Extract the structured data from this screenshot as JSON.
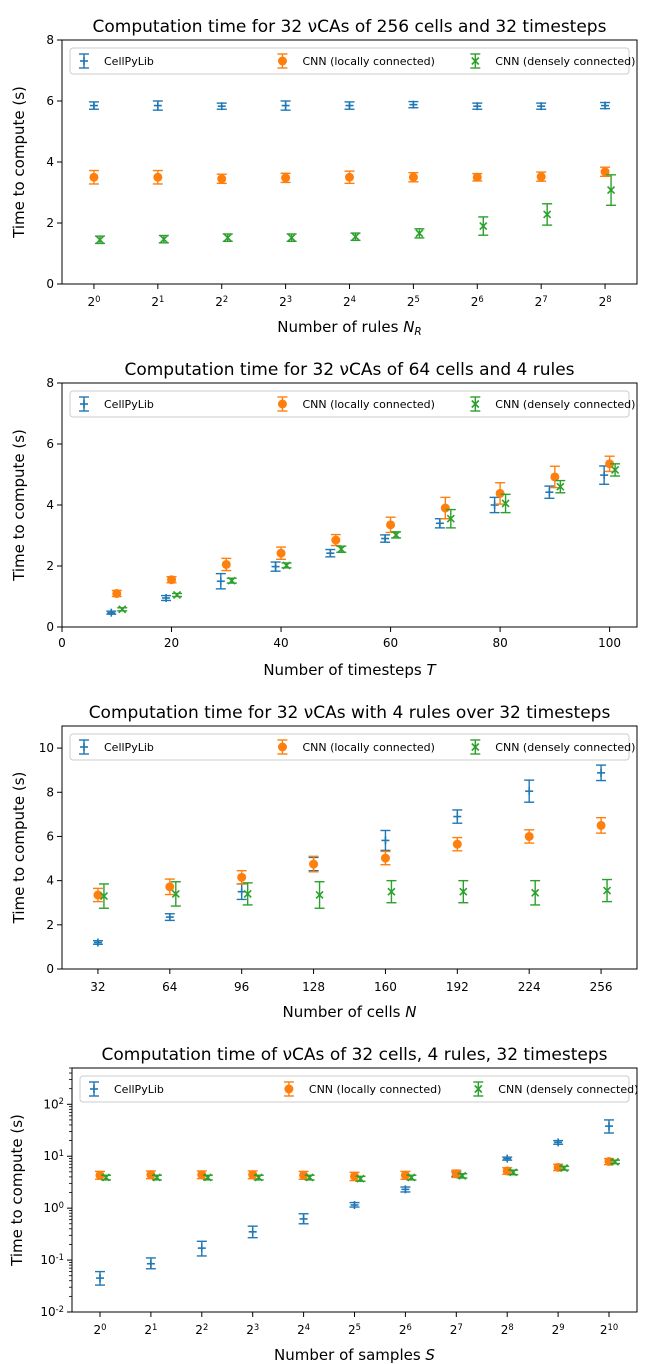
{
  "colors": {
    "cellpylib": "#1f77b4",
    "cnn_local": "#ff7f0e",
    "cnn_dense": "#2ca02c"
  },
  "chart_data": [
    {
      "type": "scatter",
      "title": "Computation time for 32 νCAs of 256 cells and 32 timesteps",
      "xlabel": "Number of rules N_R",
      "ylabel": "Time to compute (s)",
      "xscale": "categorical-log2",
      "x": [
        1,
        2,
        4,
        8,
        16,
        32,
        64,
        128,
        256
      ],
      "x_tick_labels": [
        "2^0",
        "2^1",
        "2^2",
        "2^3",
        "2^4",
        "2^5",
        "2^6",
        "2^7",
        "2^8"
      ],
      "ylim": [
        0,
        8
      ],
      "y_ticks": [
        0,
        2,
        4,
        6,
        8
      ],
      "legend": "top, 3 columns",
      "series": [
        {
          "name": "CellPyLib",
          "marker": "plus",
          "values": [
            5.85,
            5.85,
            5.83,
            5.85,
            5.85,
            5.88,
            5.83,
            5.83,
            5.85
          ],
          "err": [
            0.12,
            0.15,
            0.1,
            0.15,
            0.12,
            0.1,
            0.1,
            0.1,
            0.1
          ]
        },
        {
          "name": "CNN (locally connected)",
          "marker": "circle",
          "values": [
            3.5,
            3.5,
            3.45,
            3.48,
            3.5,
            3.5,
            3.5,
            3.52,
            3.68
          ],
          "err": [
            0.22,
            0.22,
            0.15,
            0.15,
            0.2,
            0.15,
            0.12,
            0.15,
            0.15
          ]
        },
        {
          "name": "CNN (densely connected)",
          "marker": "x",
          "values": [
            1.45,
            1.47,
            1.52,
            1.52,
            1.55,
            1.66,
            1.9,
            2.28,
            3.08
          ],
          "err": [
            0.12,
            0.12,
            0.12,
            0.12,
            0.12,
            0.15,
            0.3,
            0.35,
            0.5
          ]
        }
      ]
    },
    {
      "type": "scatter",
      "title": "Computation time for 32 νCAs of 64 cells and 4 rules",
      "xlabel": "Number of timesteps T",
      "ylabel": "Time to compute (s)",
      "xlim": [
        0,
        105
      ],
      "x_ticks": [
        0,
        20,
        40,
        60,
        80,
        100
      ],
      "ylim": [
        0,
        8
      ],
      "y_ticks": [
        0,
        2,
        4,
        6,
        8
      ],
      "legend": "top, 3 columns",
      "series": [
        {
          "name": "CellPyLib",
          "marker": "plus",
          "x": [
            9,
            19,
            29,
            39,
            49,
            59,
            69,
            79,
            89,
            99
          ],
          "values": [
            0.47,
            0.95,
            1.5,
            1.98,
            2.42,
            2.9,
            3.4,
            4.0,
            4.42,
            4.98
          ],
          "err": [
            0.05,
            0.08,
            0.25,
            0.15,
            0.12,
            0.12,
            0.15,
            0.25,
            0.2,
            0.3
          ]
        },
        {
          "name": "CNN (locally connected)",
          "marker": "circle",
          "x": [
            10,
            20,
            30,
            40,
            50,
            60,
            70,
            80,
            90,
            100
          ],
          "values": [
            1.1,
            1.55,
            2.05,
            2.42,
            2.85,
            3.35,
            3.9,
            4.38,
            4.92,
            5.35
          ],
          "err": [
            0.1,
            0.1,
            0.2,
            0.2,
            0.18,
            0.25,
            0.35,
            0.35,
            0.35,
            0.25
          ]
        },
        {
          "name": "CNN (densely connected)",
          "marker": "x",
          "x": [
            11,
            21,
            31,
            41,
            51,
            61,
            71,
            81,
            91,
            101
          ],
          "values": [
            0.58,
            1.05,
            1.52,
            2.02,
            2.55,
            3.02,
            3.55,
            4.05,
            4.6,
            5.15
          ],
          "err": [
            0.05,
            0.05,
            0.08,
            0.08,
            0.1,
            0.1,
            0.3,
            0.3,
            0.2,
            0.2
          ]
        }
      ]
    },
    {
      "type": "scatter",
      "title": "Computation time for 32 νCAs with 4 rules over 32 timesteps",
      "xlabel": "Number of cells N",
      "ylabel": "Time to compute (s)",
      "x": [
        32,
        64,
        96,
        128,
        160,
        192,
        224,
        256
      ],
      "x_tick_labels": [
        "32",
        "64",
        "96",
        "128",
        "160",
        "192",
        "224",
        "256"
      ],
      "ylim": [
        0,
        11
      ],
      "y_ticks": [
        0,
        2,
        4,
        6,
        8,
        10
      ],
      "legend": "top, 3 columns",
      "series": [
        {
          "name": "CellPyLib",
          "marker": "plus",
          "values": [
            1.2,
            2.35,
            3.5,
            4.75,
            5.82,
            6.9,
            8.05,
            8.88
          ],
          "err": [
            0.08,
            0.15,
            0.35,
            0.3,
            0.45,
            0.3,
            0.5,
            0.35
          ]
        },
        {
          "name": "CNN (locally connected)",
          "marker": "circle",
          "values": [
            3.35,
            3.72,
            4.15,
            4.75,
            5.02,
            5.65,
            6.0,
            6.5
          ],
          "err": [
            0.3,
            0.35,
            0.3,
            0.35,
            0.3,
            0.3,
            0.3,
            0.35
          ]
        },
        {
          "name": "CNN (densely connected)",
          "marker": "x",
          "values": [
            3.3,
            3.4,
            3.4,
            3.35,
            3.5,
            3.5,
            3.45,
            3.55
          ],
          "err": [
            0.55,
            0.55,
            0.5,
            0.6,
            0.5,
            0.5,
            0.55,
            0.5
          ]
        }
      ]
    },
    {
      "type": "scatter",
      "title": "Computation time of νCAs of 32 cells, 4 rules, 32 timesteps",
      "xlabel": "Number of samples S",
      "ylabel": "Time to compute (s)",
      "yscale": "log",
      "x": [
        1,
        2,
        4,
        8,
        16,
        32,
        64,
        128,
        256,
        512,
        1024
      ],
      "x_tick_labels": [
        "2^0",
        "2^1",
        "2^2",
        "2^3",
        "2^4",
        "2^5",
        "2^6",
        "2^7",
        "2^8",
        "2^9",
        "2^10"
      ],
      "ylim": [
        0.01,
        500
      ],
      "y_tick_labels": [
        "10^-2",
        "10^-1",
        "10^0",
        "10^1",
        "10^2"
      ],
      "legend": "top, 3 columns",
      "series": [
        {
          "name": "CellPyLib",
          "marker": "plus",
          "values": [
            0.045,
            0.085,
            0.17,
            0.35,
            0.62,
            1.15,
            2.3,
            4.5,
            9.0,
            18.5,
            38
          ],
          "lo": [
            0.033,
            0.068,
            0.12,
            0.27,
            0.5,
            1.05,
            2.05,
            4.1,
            8.4,
            17,
            28
          ],
          "hi": [
            0.06,
            0.11,
            0.23,
            0.45,
            0.78,
            1.28,
            2.55,
            5.0,
            9.6,
            20,
            50
          ]
        },
        {
          "name": "CNN (locally connected)",
          "marker": "circle",
          "values": [
            4.3,
            4.4,
            4.4,
            4.4,
            4.3,
            4.1,
            4.3,
            4.6,
            5.2,
            6.1,
            7.9
          ],
          "lo": [
            3.6,
            3.7,
            3.7,
            3.7,
            3.6,
            3.4,
            3.6,
            3.9,
            4.5,
            5.3,
            6.9
          ],
          "hi": [
            5.1,
            5.2,
            5.2,
            5.2,
            5.1,
            4.9,
            5.1,
            5.4,
            6.0,
            7.0,
            9.0
          ]
        },
        {
          "name": "CNN (densely connected)",
          "marker": "x",
          "values": [
            3.9,
            3.9,
            3.9,
            3.9,
            3.9,
            3.7,
            3.9,
            4.2,
            4.9,
            5.9,
            7.8
          ],
          "lo": [
            3.5,
            3.5,
            3.5,
            3.5,
            3.5,
            3.3,
            3.5,
            3.8,
            4.4,
            5.4,
            7.2
          ],
          "hi": [
            4.3,
            4.3,
            4.3,
            4.3,
            4.3,
            4.1,
            4.3,
            4.6,
            5.4,
            6.4,
            8.4
          ]
        }
      ]
    }
  ]
}
